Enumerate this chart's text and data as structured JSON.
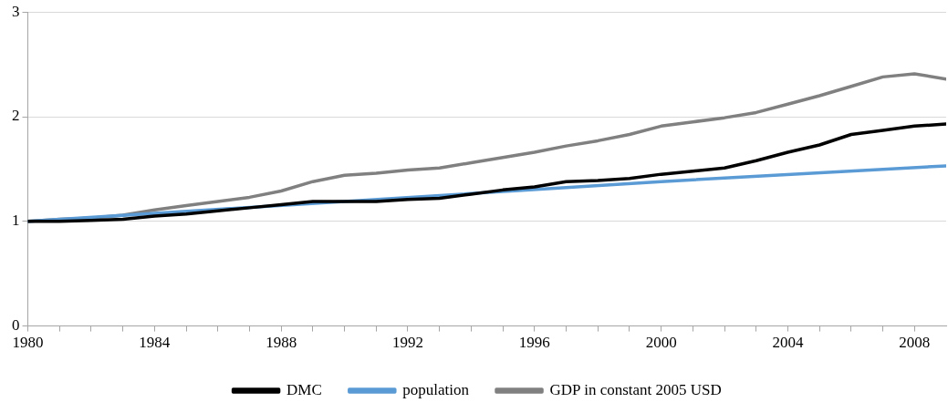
{
  "chart_data": {
    "type": "line",
    "xlim": [
      1980,
      2009
    ],
    "ylim": [
      0,
      3
    ],
    "yticks": [
      0,
      1,
      2,
      3
    ],
    "xticks": [
      1980,
      {
        "value": 1981,
        "label": null
      },
      {
        "value": 1982,
        "label": null
      },
      {
        "value": 1983,
        "label": null
      },
      1984,
      {
        "value": 1985,
        "label": null
      },
      {
        "value": 1986,
        "label": null
      },
      {
        "value": 1987,
        "label": null
      },
      1988,
      {
        "value": 1989,
        "label": null
      },
      {
        "value": 1990,
        "label": null
      },
      {
        "value": 1991,
        "label": null
      },
      1992,
      {
        "value": 1993,
        "label": null
      },
      {
        "value": 1994,
        "label": null
      },
      {
        "value": 1995,
        "label": null
      },
      1996,
      {
        "value": 1997,
        "label": null
      },
      {
        "value": 1998,
        "label": null
      },
      {
        "value": 1999,
        "label": null
      },
      2000,
      {
        "value": 2001,
        "label": null
      },
      {
        "value": 2002,
        "label": null
      },
      {
        "value": 2003,
        "label": null
      },
      2004,
      {
        "value": 2005,
        "label": null
      },
      {
        "value": 2006,
        "label": null
      },
      {
        "value": 2007,
        "label": null
      },
      2008
    ],
    "x": [
      1980,
      1981,
      1982,
      1983,
      1984,
      1985,
      1986,
      1987,
      1988,
      1989,
      1990,
      1991,
      1992,
      1993,
      1994,
      1995,
      1996,
      1997,
      1998,
      1999,
      2000,
      2001,
      2002,
      2003,
      2004,
      2005,
      2006,
      2007,
      2008,
      2009
    ],
    "series": [
      {
        "name": "DMC",
        "color": "#000000",
        "values": [
          1.0,
          1.0,
          1.01,
          1.02,
          1.05,
          1.07,
          1.1,
          1.13,
          1.16,
          1.19,
          1.19,
          1.19,
          1.21,
          1.22,
          1.26,
          1.3,
          1.33,
          1.38,
          1.39,
          1.41,
          1.45,
          1.48,
          1.51,
          1.58,
          1.66,
          1.73,
          1.83,
          1.87,
          1.91,
          1.93
        ]
      },
      {
        "name": "population",
        "color": "#5b9bd5",
        "x": [
          1980,
          1990,
          2000,
          2009
        ],
        "values": [
          1.0,
          1.19,
          1.38,
          1.53
        ]
      },
      {
        "name": "GDP in constant 2005 USD",
        "color": "#808080",
        "values": [
          1.0,
          1.02,
          1.03,
          1.06,
          1.11,
          1.15,
          1.19,
          1.23,
          1.29,
          1.38,
          1.44,
          1.46,
          1.49,
          1.51,
          1.56,
          1.61,
          1.66,
          1.72,
          1.77,
          1.83,
          1.91,
          1.95,
          1.99,
          2.04,
          2.12,
          2.2,
          2.29,
          2.38,
          2.41,
          2.36
        ]
      }
    ],
    "grid": "y",
    "legend": "bottom",
    "marker": "none",
    "line_style": "solid"
  }
}
